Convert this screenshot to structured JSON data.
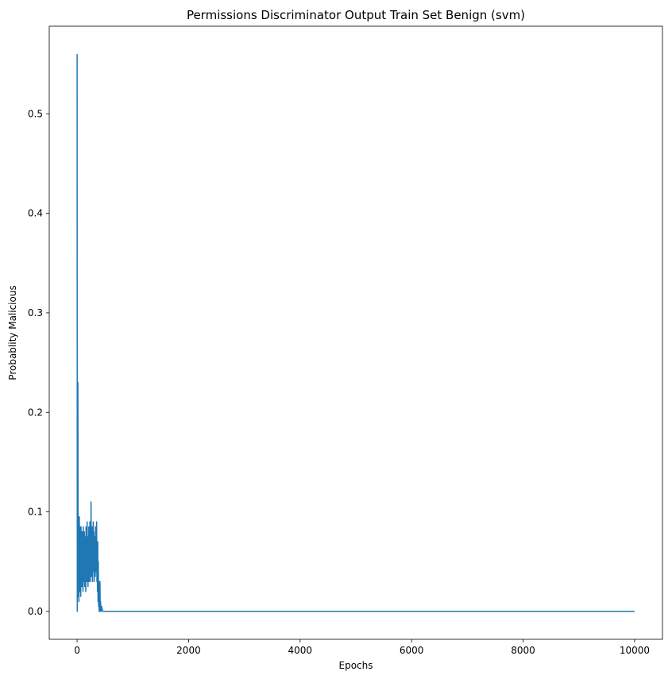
{
  "chart_data": {
    "type": "line",
    "title": "Permissions Discriminator Output Train Set Benign (svm)",
    "xlabel": "Epochs",
    "ylabel": "Probablity Malicious",
    "xlim": [
      -500,
      10500
    ],
    "ylim": [
      -0.028,
      0.588
    ],
    "xticks": [
      0,
      2000,
      4000,
      6000,
      8000,
      10000
    ],
    "yticks": [
      0.0,
      0.1,
      0.2,
      0.3,
      0.4,
      0.5
    ],
    "ytick_labels": [
      "0.0",
      "0.1",
      "0.2",
      "0.3",
      "0.4",
      "0.5"
    ],
    "grid": false,
    "series": [
      {
        "name": "",
        "color": "#1f77b4",
        "x": [
          0,
          3,
          6,
          10,
          14,
          18,
          20,
          24,
          28,
          32,
          35,
          40,
          45,
          50,
          55,
          60,
          65,
          70,
          75,
          80,
          85,
          90,
          95,
          100,
          105,
          110,
          115,
          120,
          125,
          130,
          135,
          140,
          145,
          150,
          155,
          160,
          165,
          170,
          175,
          180,
          185,
          190,
          195,
          200,
          205,
          210,
          215,
          220,
          225,
          230,
          235,
          240,
          245,
          250,
          255,
          260,
          265,
          270,
          275,
          280,
          285,
          290,
          295,
          300,
          305,
          310,
          315,
          320,
          325,
          330,
          335,
          340,
          345,
          350,
          355,
          360,
          365,
          370,
          375,
          380,
          385,
          390,
          395,
          400,
          405,
          410,
          415,
          420,
          425,
          430,
          440,
          460,
          500,
          1000,
          2000,
          4000,
          6000,
          8000,
          10000
        ],
        "y": [
          0.56,
          0.0,
          0.06,
          0.02,
          0.23,
          0.015,
          0.08,
          0.03,
          0.095,
          0.01,
          0.06,
          0.095,
          0.02,
          0.085,
          0.035,
          0.075,
          0.015,
          0.085,
          0.04,
          0.07,
          0.025,
          0.08,
          0.035,
          0.065,
          0.02,
          0.085,
          0.03,
          0.07,
          0.04,
          0.08,
          0.025,
          0.075,
          0.035,
          0.06,
          0.02,
          0.085,
          0.045,
          0.07,
          0.03,
          0.09,
          0.035,
          0.075,
          0.025,
          0.065,
          0.04,
          0.085,
          0.03,
          0.07,
          0.045,
          0.09,
          0.03,
          0.08,
          0.04,
          0.11,
          0.035,
          0.075,
          0.045,
          0.085,
          0.03,
          0.07,
          0.05,
          0.09,
          0.04,
          0.08,
          0.03,
          0.065,
          0.045,
          0.075,
          0.035,
          0.085,
          0.05,
          0.07,
          0.04,
          0.09,
          0.03,
          0.06,
          0.02,
          0.07,
          0.01,
          0.05,
          0.005,
          0.03,
          0.0,
          0.02,
          0.0,
          0.03,
          0.0,
          0.01,
          0.005,
          0.0,
          0.005,
          0.0,
          0.0,
          0.0,
          0.0,
          0.0,
          0.0,
          0.0,
          0.0
        ]
      }
    ]
  }
}
